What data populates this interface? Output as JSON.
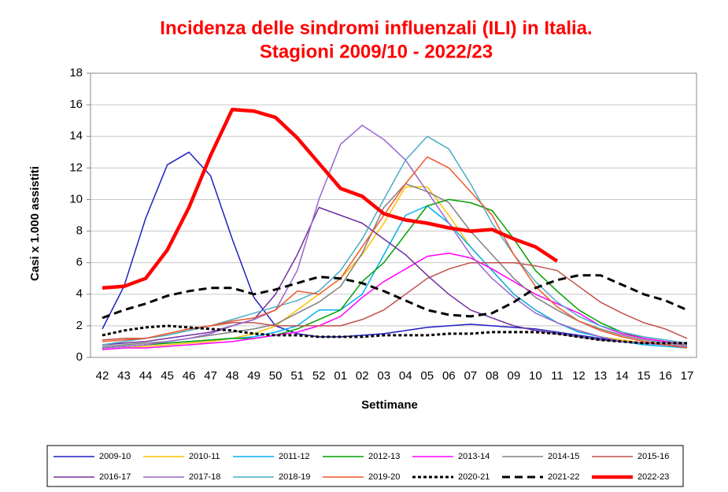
{
  "chart_data": {
    "type": "line",
    "title": [
      "Incidenza delle sindromi influenzali (ILI) in Italia.",
      "Stagioni 2009/10 - 2022/23"
    ],
    "x_label": "Settimane",
    "y_label": "Casi x 1.000 assistiti",
    "categories": [
      "42",
      "43",
      "44",
      "45",
      "46",
      "47",
      "48",
      "49",
      "50",
      "51",
      "52",
      "01",
      "02",
      "03",
      "04",
      "05",
      "06",
      "07",
      "08",
      "09",
      "10",
      "11",
      "12",
      "13",
      "14",
      "15",
      "16",
      "17"
    ],
    "ylim": [
      0,
      18
    ],
    "yticks": [
      0,
      2,
      4,
      6,
      8,
      10,
      12,
      14,
      16,
      18
    ],
    "grid": true,
    "legend": "bottom",
    "series": [
      {
        "name": "2009-10",
        "color": "#1f1fbf",
        "linewidth": 1.5,
        "line_style": "solid",
        "values": [
          1.8,
          4.5,
          8.8,
          12.2,
          13.0,
          11.5,
          7.5,
          3.8,
          2.0,
          1.5,
          1.3,
          1.3,
          1.4,
          1.5,
          1.7,
          1.9,
          2.0,
          2.1,
          2.0,
          1.9,
          1.8,
          1.6,
          1.4,
          1.2,
          1.0,
          0.9,
          0.8,
          0.7
        ]
      },
      {
        "name": "2010-11",
        "color": "#ffc000",
        "linewidth": 1.5,
        "line_style": "solid",
        "values": [
          0.5,
          0.6,
          0.7,
          0.8,
          0.9,
          1.0,
          1.2,
          1.5,
          2.0,
          3.0,
          4.0,
          5.0,
          6.5,
          8.5,
          10.8,
          10.8,
          9.0,
          7.0,
          5.5,
          4.0,
          3.0,
          2.2,
          1.7,
          1.3,
          1.1,
          0.9,
          0.8,
          0.7
        ]
      },
      {
        "name": "2011-12",
        "color": "#00b0f0",
        "linewidth": 1.5,
        "line_style": "solid",
        "values": [
          0.6,
          0.7,
          0.8,
          0.9,
          1.0,
          1.1,
          1.2,
          1.3,
          1.6,
          2.0,
          3.0,
          3.0,
          4.0,
          6.5,
          9.0,
          9.6,
          8.5,
          7.0,
          5.5,
          4.0,
          3.0,
          2.2,
          1.6,
          1.3,
          1.0,
          0.8,
          0.7,
          0.6
        ]
      },
      {
        "name": "2012-13",
        "color": "#00a000",
        "linewidth": 1.5,
        "line_style": "solid",
        "values": [
          0.6,
          0.7,
          0.8,
          0.9,
          1.0,
          1.1,
          1.2,
          1.2,
          1.4,
          1.8,
          2.4,
          3.0,
          4.8,
          6.0,
          7.8,
          9.6,
          10.0,
          9.8,
          9.3,
          7.5,
          5.5,
          4.2,
          3.0,
          2.2,
          1.6,
          1.2,
          1.0,
          0.8
        ]
      },
      {
        "name": "2013-14",
        "color": "#ff00ff",
        "linewidth": 1.5,
        "line_style": "solid",
        "values": [
          0.5,
          0.6,
          0.6,
          0.7,
          0.8,
          0.9,
          1.0,
          1.2,
          1.4,
          1.6,
          2.0,
          2.6,
          3.8,
          4.8,
          5.6,
          6.4,
          6.6,
          6.3,
          5.6,
          4.8,
          4.0,
          3.4,
          2.8,
          2.0,
          1.5,
          1.2,
          1.0,
          0.8
        ]
      },
      {
        "name": "2014-15",
        "color": "#808080",
        "linewidth": 1.5,
        "line_style": "solid",
        "values": [
          0.7,
          0.8,
          0.9,
          1.0,
          1.2,
          1.4,
          1.6,
          1.8,
          2.1,
          2.8,
          3.5,
          4.5,
          6.6,
          9.5,
          11.0,
          10.5,
          9.8,
          8.0,
          6.5,
          5.0,
          3.8,
          3.0,
          2.3,
          1.8,
          1.4,
          1.1,
          0.9,
          0.8
        ]
      },
      {
        "name": "2015-16",
        "color": "#c0504d",
        "linewidth": 1.5,
        "line_style": "solid",
        "values": [
          1.1,
          1.2,
          1.2,
          1.5,
          1.8,
          2.0,
          2.2,
          2.2,
          2.0,
          2.0,
          2.0,
          2.0,
          2.4,
          3.0,
          4.0,
          5.0,
          5.6,
          6.0,
          6.0,
          6.0,
          5.8,
          5.5,
          4.5,
          3.5,
          2.8,
          2.2,
          1.8,
          1.2
        ]
      },
      {
        "name": "2016-17",
        "color": "#7030a0",
        "linewidth": 1.5,
        "line_style": "solid",
        "values": [
          0.8,
          0.9,
          1.0,
          1.2,
          1.4,
          1.6,
          2.0,
          2.4,
          4.0,
          6.5,
          9.5,
          9.0,
          8.5,
          7.5,
          6.5,
          5.2,
          4.0,
          3.0,
          2.5,
          2.0,
          1.7,
          1.5,
          1.3,
          1.1,
          1.0,
          0.9,
          0.8,
          0.7
        ]
      },
      {
        "name": "2017-18",
        "color": "#9966cc",
        "linewidth": 1.5,
        "line_style": "solid",
        "values": [
          0.6,
          0.7,
          0.8,
          1.0,
          1.2,
          1.5,
          2.0,
          2.4,
          3.0,
          5.5,
          10.0,
          13.5,
          14.7,
          13.8,
          12.5,
          10.5,
          8.5,
          6.5,
          5.0,
          3.8,
          2.8,
          2.2,
          1.7,
          1.3,
          1.0,
          0.9,
          0.8,
          0.7
        ]
      },
      {
        "name": "2018-19",
        "color": "#4bacc6",
        "linewidth": 1.5,
        "line_style": "solid",
        "values": [
          0.8,
          1.0,
          1.2,
          1.4,
          1.7,
          2.0,
          2.4,
          2.8,
          3.2,
          3.6,
          4.2,
          5.5,
          7.5,
          10.0,
          12.5,
          14.0,
          13.2,
          11.0,
          8.5,
          6.5,
          4.8,
          3.5,
          2.6,
          2.0,
          1.6,
          1.3,
          1.1,
          0.9
        ]
      },
      {
        "name": "2019-20",
        "color": "#f0582a",
        "linewidth": 1.5,
        "line_style": "solid",
        "values": [
          1.0,
          1.1,
          1.2,
          1.5,
          1.8,
          2.0,
          2.3,
          2.5,
          3.0,
          4.2,
          4.0,
          5.0,
          7.0,
          9.0,
          11.0,
          12.7,
          12.0,
          10.5,
          9.0,
          6.5,
          4.5,
          3.2,
          2.3,
          1.7,
          1.3,
          1.0,
          0.8,
          0.6
        ]
      },
      {
        "name": "2020-21",
        "color": "#000000",
        "linewidth": 3,
        "line_style": "dotted",
        "values": [
          1.4,
          1.7,
          1.9,
          2.0,
          1.9,
          1.8,
          1.7,
          1.5,
          1.4,
          1.4,
          1.3,
          1.3,
          1.3,
          1.4,
          1.4,
          1.4,
          1.5,
          1.5,
          1.6,
          1.6,
          1.6,
          1.5,
          1.3,
          1.1,
          1.0,
          0.9,
          0.9,
          0.9
        ]
      },
      {
        "name": "2021-22",
        "color": "#000000",
        "linewidth": 3,
        "line_style": "dashed",
        "values": [
          2.5,
          3.0,
          3.4,
          3.9,
          4.2,
          4.4,
          4.4,
          4.0,
          4.3,
          4.7,
          5.1,
          5.0,
          4.7,
          4.2,
          3.6,
          3.0,
          2.7,
          2.6,
          2.8,
          3.5,
          4.4,
          4.9,
          5.2,
          5.2,
          4.6,
          4.0,
          3.6,
          3.0
        ]
      },
      {
        "name": "2022-23",
        "color": "#ff0000",
        "linewidth": 4.5,
        "line_style": "solid",
        "values": [
          4.4,
          4.5,
          5.0,
          6.8,
          9.5,
          12.8,
          15.7,
          15.6,
          15.2,
          13.9,
          12.3,
          10.7,
          10.2,
          9.1,
          8.7,
          8.5,
          8.2,
          8.0,
          8.1,
          7.5,
          7.0,
          6.1,
          null,
          null,
          null,
          null,
          null,
          null
        ]
      }
    ]
  }
}
